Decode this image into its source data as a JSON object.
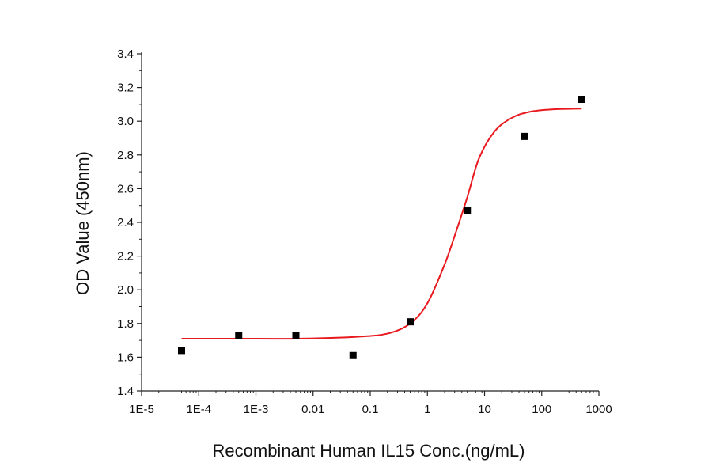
{
  "chart_data": {
    "type": "scatter",
    "title": "",
    "xlabel": "Recombinant Human IL15 Conc.(ng/mL)",
    "ylabel": "OD Value (450nm)",
    "x_scale": "log",
    "xlim": [
      1e-05,
      1000
    ],
    "ylim": [
      1.4,
      3.4
    ],
    "x_ticks": [
      {
        "value": 1e-05,
        "label": "1E-5"
      },
      {
        "value": 0.0001,
        "label": "1E-4"
      },
      {
        "value": 0.001,
        "label": "1E-3"
      },
      {
        "value": 0.01,
        "label": "0.01"
      },
      {
        "value": 0.1,
        "label": "0.1"
      },
      {
        "value": 1,
        "label": "1"
      },
      {
        "value": 10,
        "label": "10"
      },
      {
        "value": 100,
        "label": "100"
      },
      {
        "value": 1000,
        "label": "1000"
      }
    ],
    "y_ticks": [
      {
        "value": 1.4,
        "label": "1.4"
      },
      {
        "value": 1.6,
        "label": "1.6"
      },
      {
        "value": 1.8,
        "label": "1.8"
      },
      {
        "value": 2.0,
        "label": "2.0"
      },
      {
        "value": 2.2,
        "label": "2.2"
      },
      {
        "value": 2.4,
        "label": "2.4"
      },
      {
        "value": 2.6,
        "label": "2.6"
      },
      {
        "value": 2.8,
        "label": "2.8"
      },
      {
        "value": 3.0,
        "label": "3.0"
      },
      {
        "value": 3.2,
        "label": "3.2"
      },
      {
        "value": 3.4,
        "label": "3.4"
      }
    ],
    "grid": false,
    "legend": "none",
    "series": [
      {
        "kind": "points",
        "marker": "square",
        "color": "#000000",
        "x": [
          5e-05,
          0.0005,
          0.005,
          0.05,
          0.5,
          5,
          50,
          500
        ],
        "y": [
          1.64,
          1.73,
          1.73,
          1.61,
          1.81,
          2.47,
          2.91,
          3.13
        ]
      },
      {
        "kind": "fit_curve",
        "color": "#e8191f",
        "x": [
          5e-05,
          0.0005,
          0.005,
          0.05,
          0.2,
          0.5,
          1,
          2,
          3,
          5,
          8,
          15,
          30,
          60,
          150,
          500
        ],
        "y": [
          1.71,
          1.71,
          1.71,
          1.72,
          1.74,
          1.8,
          1.92,
          2.15,
          2.32,
          2.55,
          2.78,
          2.94,
          3.02,
          3.055,
          3.07,
          3.075
        ]
      }
    ]
  }
}
